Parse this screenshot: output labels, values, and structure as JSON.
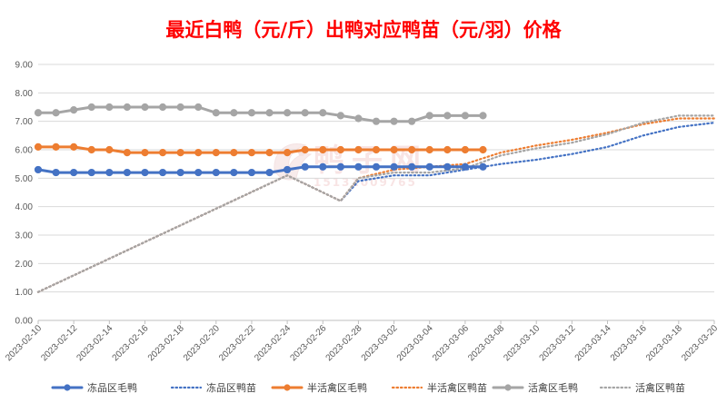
{
  "chart_data": {
    "type": "line",
    "title": "最近白鸭（元/斤）出鸭对应鸭苗（元/羽）价格",
    "ylim": [
      0,
      9
    ],
    "yticks": [
      "0.00",
      "1.00",
      "2.00",
      "3.00",
      "4.00",
      "5.00",
      "6.00",
      "7.00",
      "8.00",
      "9.00"
    ],
    "x_start": "2023-02-10",
    "x_end": "2023-03-20",
    "xtick_labels": [
      "2023-02-10",
      "2023-02-12",
      "2023-02-14",
      "2023-02-16",
      "2023-02-18",
      "2023-02-20",
      "2023-02-22",
      "2023-02-24",
      "2023-02-26",
      "2023-02-28",
      "2023-03-02",
      "2023-03-04",
      "2023-03-06",
      "2023-03-08",
      "2023-03-10",
      "2023-03-12",
      "2023-03-14",
      "2023-03-16",
      "2023-03-18",
      "2023-03-20"
    ],
    "grid": "horizontal",
    "legend_position": "bottom",
    "watermark": {
      "text": "鸭子网",
      "phone": "15131009765"
    },
    "series": [
      {
        "name": "冻品区毛鸭",
        "color": "#4472C4",
        "style": "solid",
        "markers": true,
        "x": [
          "2023-02-10",
          "2023-02-11",
          "2023-02-12",
          "2023-02-13",
          "2023-02-14",
          "2023-02-15",
          "2023-02-16",
          "2023-02-17",
          "2023-02-18",
          "2023-02-19",
          "2023-02-20",
          "2023-02-21",
          "2023-02-22",
          "2023-02-23",
          "2023-02-24",
          "2023-02-25",
          "2023-02-26",
          "2023-02-27",
          "2023-02-28",
          "2023-03-01",
          "2023-03-02",
          "2023-03-03",
          "2023-03-04",
          "2023-03-05",
          "2023-03-06",
          "2023-03-07"
        ],
        "y": [
          5.3,
          5.2,
          5.2,
          5.2,
          5.2,
          5.2,
          5.2,
          5.2,
          5.2,
          5.2,
          5.2,
          5.2,
          5.2,
          5.2,
          5.3,
          5.4,
          5.4,
          5.4,
          5.4,
          5.4,
          5.4,
          5.4,
          5.4,
          5.4,
          5.4,
          5.4
        ]
      },
      {
        "name": "冻品区鸭苗",
        "color": "#4472C4",
        "style": "dotted",
        "markers": false,
        "x": [
          "2023-02-10",
          "2023-02-24",
          "2023-02-27",
          "2023-02-28",
          "2023-03-02",
          "2023-03-04",
          "2023-03-06",
          "2023-03-08",
          "2023-03-10",
          "2023-03-12",
          "2023-03-14",
          "2023-03-16",
          "2023-03-18",
          "2023-03-20"
        ],
        "y": [
          1.0,
          5.1,
          4.2,
          4.9,
          5.1,
          5.1,
          5.3,
          5.5,
          5.65,
          5.85,
          6.1,
          6.5,
          6.8,
          6.95
        ]
      },
      {
        "name": "半活禽区毛鸭",
        "color": "#ED7D31",
        "style": "solid",
        "markers": true,
        "x": [
          "2023-02-10",
          "2023-02-11",
          "2023-02-12",
          "2023-02-13",
          "2023-02-14",
          "2023-02-15",
          "2023-02-16",
          "2023-02-17",
          "2023-02-18",
          "2023-02-19",
          "2023-02-20",
          "2023-02-21",
          "2023-02-22",
          "2023-02-23",
          "2023-02-24",
          "2023-02-25",
          "2023-02-26",
          "2023-02-27",
          "2023-02-28",
          "2023-03-01",
          "2023-03-02",
          "2023-03-03",
          "2023-03-04",
          "2023-03-05",
          "2023-03-06",
          "2023-03-07"
        ],
        "y": [
          6.1,
          6.1,
          6.1,
          6.0,
          6.0,
          5.9,
          5.9,
          5.9,
          5.9,
          5.9,
          5.9,
          5.9,
          5.9,
          5.9,
          5.9,
          6.0,
          6.0,
          6.0,
          6.0,
          6.0,
          6.0,
          6.0,
          6.0,
          6.0,
          6.0,
          6.0
        ]
      },
      {
        "name": "半活禽区鸭苗",
        "color": "#ED7D31",
        "style": "dotted",
        "markers": false,
        "x": [
          "2023-02-10",
          "2023-02-24",
          "2023-02-27",
          "2023-02-28",
          "2023-03-02",
          "2023-03-04",
          "2023-03-06",
          "2023-03-08",
          "2023-03-10",
          "2023-03-12",
          "2023-03-14",
          "2023-03-16",
          "2023-03-18",
          "2023-03-20"
        ],
        "y": [
          1.0,
          5.1,
          4.2,
          5.0,
          5.3,
          5.4,
          5.5,
          5.9,
          6.15,
          6.35,
          6.6,
          6.9,
          7.1,
          7.1
        ]
      },
      {
        "name": "活禽区毛鸭",
        "color": "#A5A5A5",
        "style": "solid",
        "markers": true,
        "x": [
          "2023-02-10",
          "2023-02-11",
          "2023-02-12",
          "2023-02-13",
          "2023-02-14",
          "2023-02-15",
          "2023-02-16",
          "2023-02-17",
          "2023-02-18",
          "2023-02-19",
          "2023-02-20",
          "2023-02-21",
          "2023-02-22",
          "2023-02-23",
          "2023-02-24",
          "2023-02-25",
          "2023-02-26",
          "2023-02-27",
          "2023-02-28",
          "2023-03-01",
          "2023-03-02",
          "2023-03-03",
          "2023-03-04",
          "2023-03-05",
          "2023-03-06",
          "2023-03-07"
        ],
        "y": [
          7.3,
          7.3,
          7.4,
          7.5,
          7.5,
          7.5,
          7.5,
          7.5,
          7.5,
          7.5,
          7.3,
          7.3,
          7.3,
          7.3,
          7.3,
          7.3,
          7.3,
          7.2,
          7.1,
          7.0,
          7.0,
          7.0,
          7.2,
          7.2,
          7.2,
          7.2
        ]
      },
      {
        "name": "活禽区鸭苗",
        "color": "#A5A5A5",
        "style": "dotted",
        "markers": false,
        "x": [
          "2023-02-10",
          "2023-02-24",
          "2023-02-27",
          "2023-02-28",
          "2023-03-02",
          "2023-03-04",
          "2023-03-06",
          "2023-03-08",
          "2023-03-10",
          "2023-03-12",
          "2023-03-14",
          "2023-03-16",
          "2023-03-18",
          "2023-03-20"
        ],
        "y": [
          1.0,
          5.1,
          4.2,
          5.0,
          5.2,
          5.2,
          5.35,
          5.8,
          6.05,
          6.25,
          6.55,
          6.95,
          7.2,
          7.2
        ]
      }
    ]
  }
}
